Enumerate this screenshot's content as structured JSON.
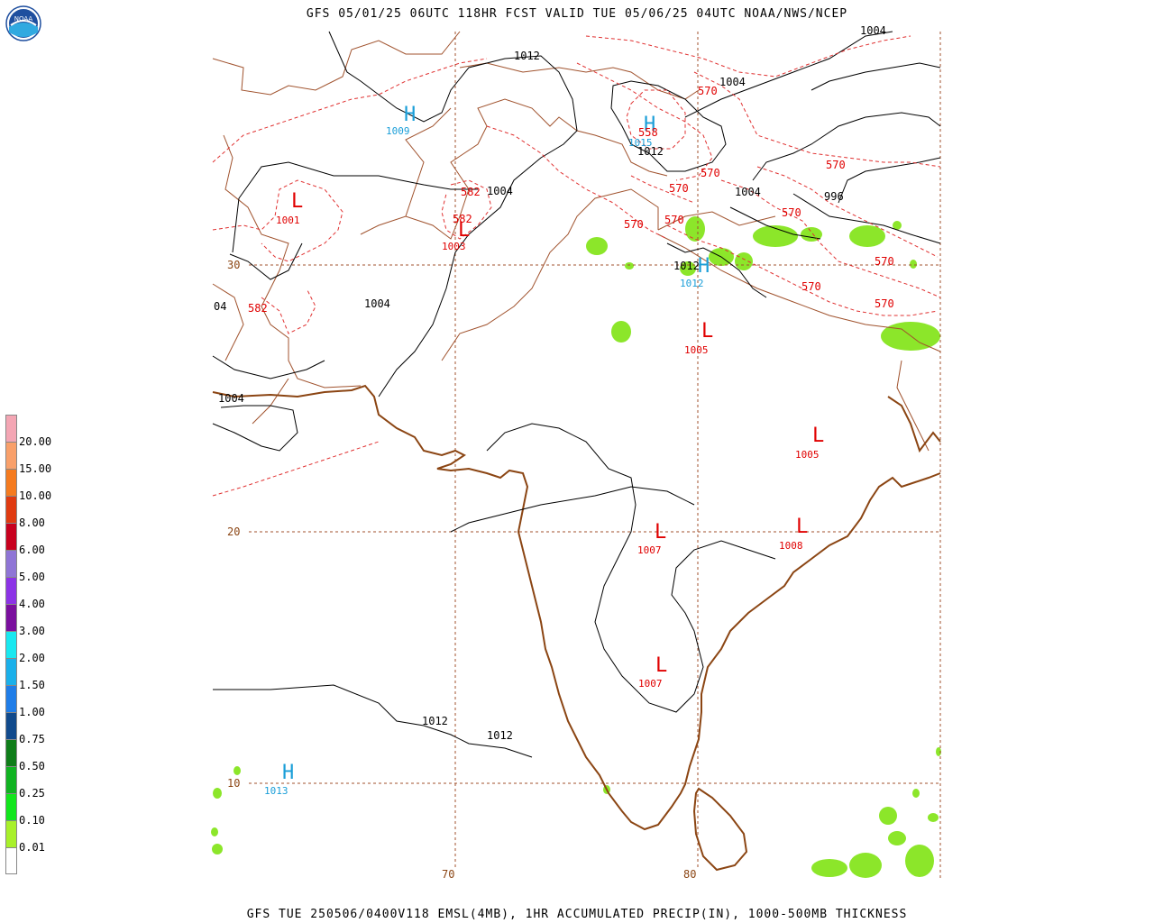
{
  "title": "GFS 05/01/25 06UTC 118HR FCST VALID TUE 05/06/25 04UTC NOAA/NWS/NCEP",
  "footer": "GFS TUE 250506/0400V118 EMSL(4MB), 1HR ACCUMULATED PRECIP(IN), 1000-500MB THICKNESS",
  "logo_text": "NOAA",
  "legend": {
    "values": [
      "20.00",
      "15.00",
      "10.00",
      "8.00",
      "6.00",
      "5.00",
      "4.00",
      "3.00",
      "2.00",
      "1.50",
      "1.00",
      "0.75",
      "0.50",
      "0.25",
      "0.10",
      "0.01"
    ],
    "colors": [
      "#f4a6b4",
      "#f9a06a",
      "#f57b1f",
      "#e03a10",
      "#c8001e",
      "#8f75d6",
      "#8c33e6",
      "#7a0f9e",
      "#18e8f0",
      "#1ab0ea",
      "#1f7de8",
      "#114a8c",
      "#0f7d19",
      "#10b321",
      "#12e61c",
      "#a8f02a"
    ]
  },
  "grid_labels": {
    "lat": [
      "30",
      "20",
      "10"
    ],
    "lon": [
      "70",
      "80"
    ]
  },
  "pressure_centers": [
    {
      "letter": "H",
      "value": "1009",
      "color": "#1a9ed8"
    },
    {
      "letter": "H",
      "value": "1015",
      "color": "#1a9ed8"
    },
    {
      "letter": "H",
      "value": "1012",
      "color": "#1a9ed8"
    },
    {
      "letter": "H",
      "value": "1013",
      "color": "#1a9ed8"
    },
    {
      "letter": "L",
      "value": "1001",
      "color": "#e00000"
    },
    {
      "letter": "L",
      "value": "1003",
      "color": "#e00000"
    },
    {
      "letter": "L",
      "value": "1005",
      "color": "#e00000"
    },
    {
      "letter": "L",
      "value": "1005",
      "color": "#e00000"
    },
    {
      "letter": "L",
      "value": "1007",
      "color": "#e00000"
    },
    {
      "letter": "L",
      "value": "1008",
      "color": "#e00000"
    },
    {
      "letter": "L",
      "value": "1007",
      "color": "#e00000"
    }
  ],
  "isobar_labels": [
    "1012",
    "1004",
    "1004",
    "1012",
    "1004",
    "996",
    "1004",
    "1012",
    "1012",
    "1012",
    "1004",
    "04",
    "1004"
  ],
  "thickness_labels": [
    "570",
    "558",
    "570",
    "570",
    "570",
    "570",
    "570",
    "582",
    "582",
    "570",
    "570",
    "570",
    "582"
  ]
}
